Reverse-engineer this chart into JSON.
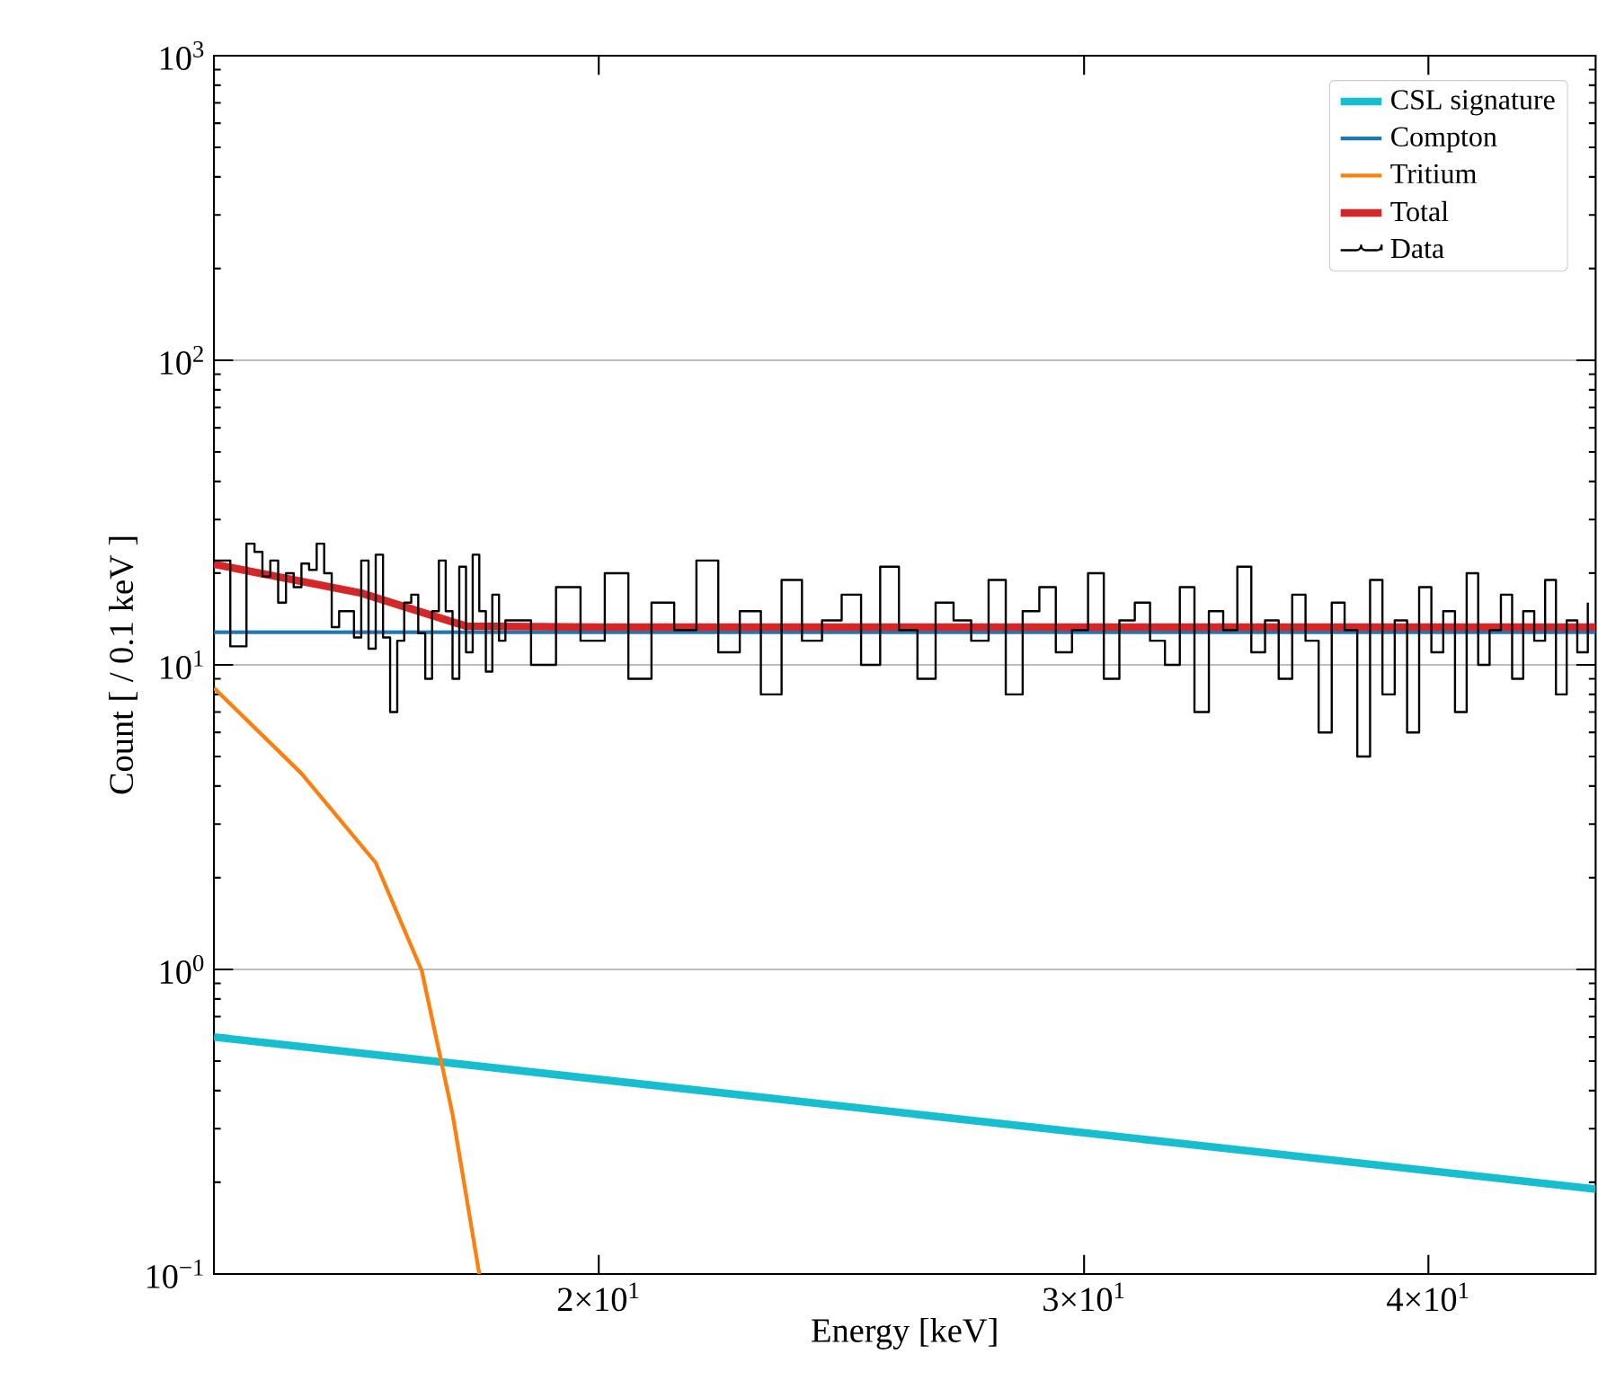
{
  "chart_data": {
    "type": "line",
    "xlabel": "Energy [keV]",
    "ylabel": "Count [ / 0.1 keV ]",
    "log": "xy",
    "grid": "y",
    "legend": "top right",
    "marker": "none",
    "line_style": "solid",
    "xlim": [
      14.5,
      46
    ],
    "ylim": [
      0.1,
      1000
    ],
    "xticks": [
      {
        "value": 20,
        "label": "2×10$^{1}$"
      },
      {
        "value": 30,
        "label": "3×10$^{1}$"
      },
      {
        "value": 40,
        "label": "4×10$^{1}$"
      }
    ],
    "yticks": [
      {
        "value": 0.1,
        "label": "10$^{−1}$"
      },
      {
        "value": 1,
        "label": "10$^{0}$"
      },
      {
        "value": 10,
        "label": "10$^{1}$"
      },
      {
        "value": 100,
        "label": "10$^{2}$"
      },
      {
        "value": 1000,
        "label": "10$^{3}$"
      }
    ],
    "series": [
      {
        "name": "CSL signature",
        "color": "#17becf",
        "x": [
          14.5,
          46
        ],
        "values": [
          0.6,
          0.19
        ]
      },
      {
        "name": "Compton",
        "color": "#1f77b4",
        "x": [
          14.5,
          46
        ],
        "values": [
          12.8,
          12.8
        ]
      },
      {
        "name": "Tritium",
        "color": "#ff7f0e",
        "x": [
          14.5,
          15.6,
          16.6,
          17.25,
          17.7,
          18.1
        ],
        "values": [
          8.4,
          4.4,
          2.24,
          0.99,
          0.335,
          0.1
        ]
      },
      {
        "name": "Total",
        "color": "#d62728",
        "x": [
          14.5,
          16.4,
          17.9,
          20,
          46
        ],
        "values": [
          21.4,
          17.2,
          13.4,
          13.3,
          13.3
        ]
      },
      {
        "name": "Data",
        "color": "#000000",
        "type": "step",
        "x": [
          14.5,
          14.6,
          14.7,
          14.8,
          14.9,
          15.0,
          15.1,
          15.2,
          15.3,
          15.4,
          15.5,
          15.6,
          15.7,
          15.8,
          15.9,
          16.0,
          16.1,
          16.2,
          16.3,
          16.4,
          16.5,
          16.6,
          16.7,
          16.8,
          16.9,
          17.0,
          17.1,
          17.2,
          17.3,
          17.4,
          17.5,
          17.6,
          17.7,
          17.8,
          17.9,
          18.0,
          18.1,
          18.2,
          18.3,
          18.4,
          18.5,
          18.9,
          19.3,
          19.7,
          20.1,
          20.5,
          20.9,
          21.3,
          21.7,
          22.1,
          22.5,
          22.9,
          23.3,
          23.7,
          24.1,
          24.5,
          24.9,
          25.3,
          25.7,
          26.1,
          26.5,
          26.9,
          27.3,
          27.7,
          28.1,
          28.5,
          28.9,
          29.3,
          29.7,
          30.1,
          30.5,
          30.9,
          31.3,
          31.7,
          32.1,
          32.5,
          32.9,
          33.3,
          33.7,
          34.1,
          34.5,
          34.9,
          35.3,
          35.7,
          36.1,
          36.5,
          36.9,
          37.3,
          37.7,
          38.1,
          38.5,
          38.9,
          39.3,
          39.7,
          40.1,
          40.5,
          40.9,
          41.3,
          41.7,
          42.1,
          42.5,
          42.9,
          43.3,
          43.7,
          44.1,
          44.5,
          44.9,
          45.3,
          45.7
        ],
        "values": [
          22,
          22,
          11.5,
          11.5,
          25,
          23.5,
          19.5,
          22,
          16,
          20,
          18,
          21.5,
          20.5,
          25,
          20,
          13.3,
          15,
          15,
          12.3,
          22,
          11.3,
          23,
          12.3,
          7,
          12,
          16,
          17,
          12.7,
          9,
          15,
          22,
          15,
          9,
          21,
          11,
          23,
          15,
          9.5,
          17,
          12,
          14,
          10,
          18,
          12,
          20,
          9,
          16,
          13,
          22,
          11,
          15,
          8,
          19,
          12,
          14,
          17,
          10,
          21,
          13,
          9,
          16,
          14,
          12,
          19,
          8,
          15,
          18,
          11,
          13,
          20,
          9,
          14,
          16,
          12,
          10,
          18,
          7,
          15,
          13,
          21,
          11,
          14,
          9,
          17,
          12,
          6,
          16,
          13,
          5,
          19,
          8,
          14,
          6,
          18,
          11,
          15,
          7,
          20,
          10,
          13,
          17,
          9,
          15,
          12,
          19,
          8,
          14,
          11,
          16
        ]
      }
    ]
  }
}
